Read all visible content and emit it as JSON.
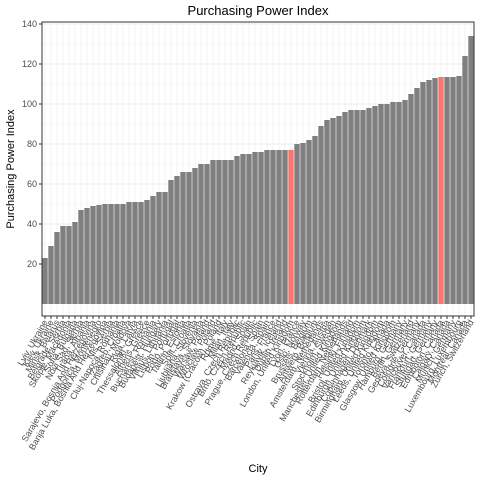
{
  "chart_data": {
    "type": "bar",
    "title": "Purchasing Power Index",
    "x_label": "City",
    "y_label": "Purchasing Power Index",
    "categories": [
      "Lviv, Ukraine",
      "Kiev, Ukraine",
      "Minsk, Belarus",
      "Belgrade, Serbia",
      "Skopje, Macedonia",
      "Sofia, Bulgaria",
      "Novi Sad, Serbia",
      "Tirana, Albania",
      "Sarajevo, Bosnia And Herzegovina",
      "Podgorica, Montenegro",
      "Banja Luka, Bosnia And Herzegovina",
      "Nis, Serbia",
      "Cluj-Napoca, Romania",
      "Zagreb, Croatia",
      "Chisinau, Moldova",
      "Riga, Latvia",
      "Thessaloniki, Greece",
      "Athens, Greece",
      "Bucharest, Romania",
      "Budapest, Hungary",
      "Vilnius, Lithuania",
      "Lisbon, Portugal",
      "Porto, Portugal",
      "Tallinn, Estonia",
      "Split, Croatia",
      "Ljubljana, Slovenia",
      "Bratislava, Slovakia",
      "Warsaw, Poland",
      "Wroclaw, Poland",
      "Krakow (Cracow), Poland",
      "Rome, Italy",
      "Milan, Italy",
      "Ostrava, Czech Republic",
      "Brno, Czech Republic",
      "Madrid, Spain",
      "Prague, Czech Republic",
      "Barcelona, Spain",
      "Valencia, Spain",
      "Paris, France",
      "Reykjavik, Iceland",
      "Dublin, Ireland",
      "London, United Kingdom",
      "Lyon, France",
      "Oslo, Norway",
      "Brussels, Belgium",
      "Antwerp, Belgium",
      "Amsterdam, Netherlands",
      "Vienna, Austria",
      "Stockholm, Sweden",
      "Manchester, United Kingdom",
      "Rotterdam, Netherlands",
      "Helsinki, Finland",
      "Bristol, United Kingdom",
      "Edinburgh, United Kingdom",
      "Copenhagen, Denmark",
      "Birmingham, United Kingdom",
      "Leeds, United Kingdom",
      "Toronto, Canada",
      "Glasgow, United Kingdom",
      "Hamburg, Germany",
      "Berlin, Germany",
      "Geneva, Switzerland",
      "Cologne, Germany",
      "Vancouver, Canada",
      "Frankfurt, Germany",
      "Stuttgart, Germany",
      "Edmonton, Canada",
      "Calgary, Canada",
      "Munich, Germany",
      "Luxembourg, Luxembourg",
      "Montreal, Canada",
      "Zurich, Switzerland"
    ],
    "values": [
      23,
      29,
      36,
      39,
      39,
      41,
      47,
      48,
      49,
      49.5,
      50,
      50,
      50,
      50,
      51,
      51,
      51,
      52,
      54,
      56,
      56,
      62,
      64,
      66,
      66,
      68,
      70,
      70,
      72,
      72,
      72,
      72,
      74,
      75,
      75,
      76,
      76,
      77,
      77,
      77,
      77,
      77,
      80,
      80.5,
      82,
      84,
      89,
      92,
      93,
      94,
      96,
      97,
      97,
      97,
      98,
      99,
      100,
      100,
      101,
      101,
      102,
      105,
      108,
      111,
      112,
      113,
      113.5,
      113.5,
      113.5,
      114,
      124,
      134
    ],
    "color": "#7f7f7f",
    "highlight_color": "#f8766d",
    "highlight": [
      41,
      66
    ],
    "ylim": [
      -6,
      141
    ],
    "yticks": [
      20,
      40,
      60,
      80,
      100,
      120,
      140
    ],
    "grid": true
  }
}
